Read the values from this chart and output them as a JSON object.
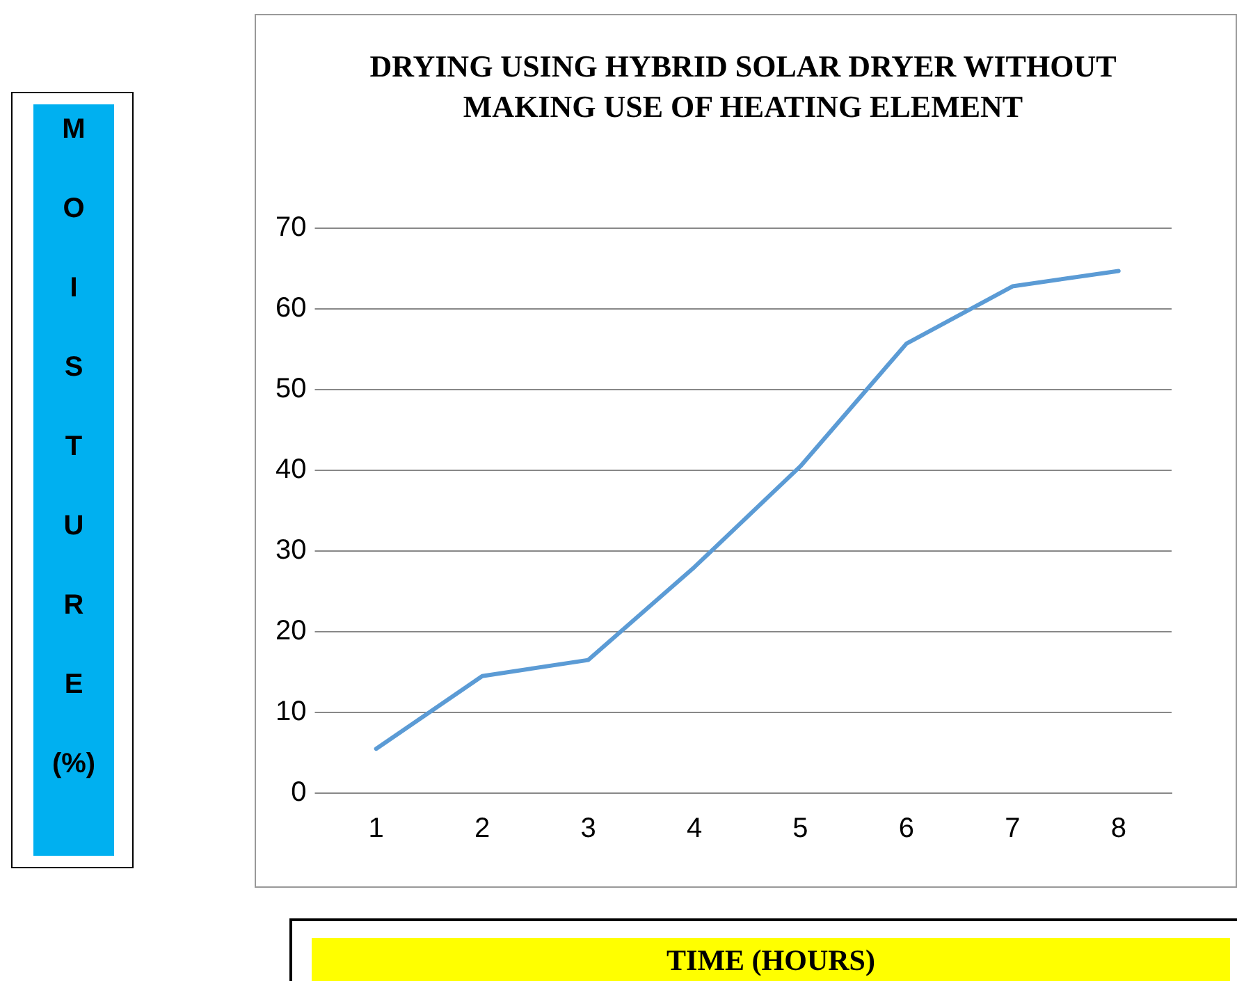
{
  "chart_data": {
    "type": "line",
    "title": "DRYING USING HYBRID SOLAR DRYER WITHOUT MAKING USE OF HEATING ELEMENT",
    "xlabel": "TIME (HOURS)",
    "ylabel": "MOISTURE (%)",
    "categories": [
      "1",
      "2",
      "3",
      "4",
      "5",
      "6",
      "7",
      "8"
    ],
    "series": [
      {
        "color": "#5b9bd5",
        "values": [
          5.5,
          14.5,
          16.5,
          28,
          40.5,
          55.7,
          62.8,
          64.7
        ]
      }
    ],
    "ylim": [
      0,
      70
    ],
    "yticks": [
      0,
      10,
      20,
      30,
      40,
      50,
      60,
      70
    ],
    "grid": "y",
    "legend": false,
    "marker": "none",
    "line_style": "solid"
  }
}
